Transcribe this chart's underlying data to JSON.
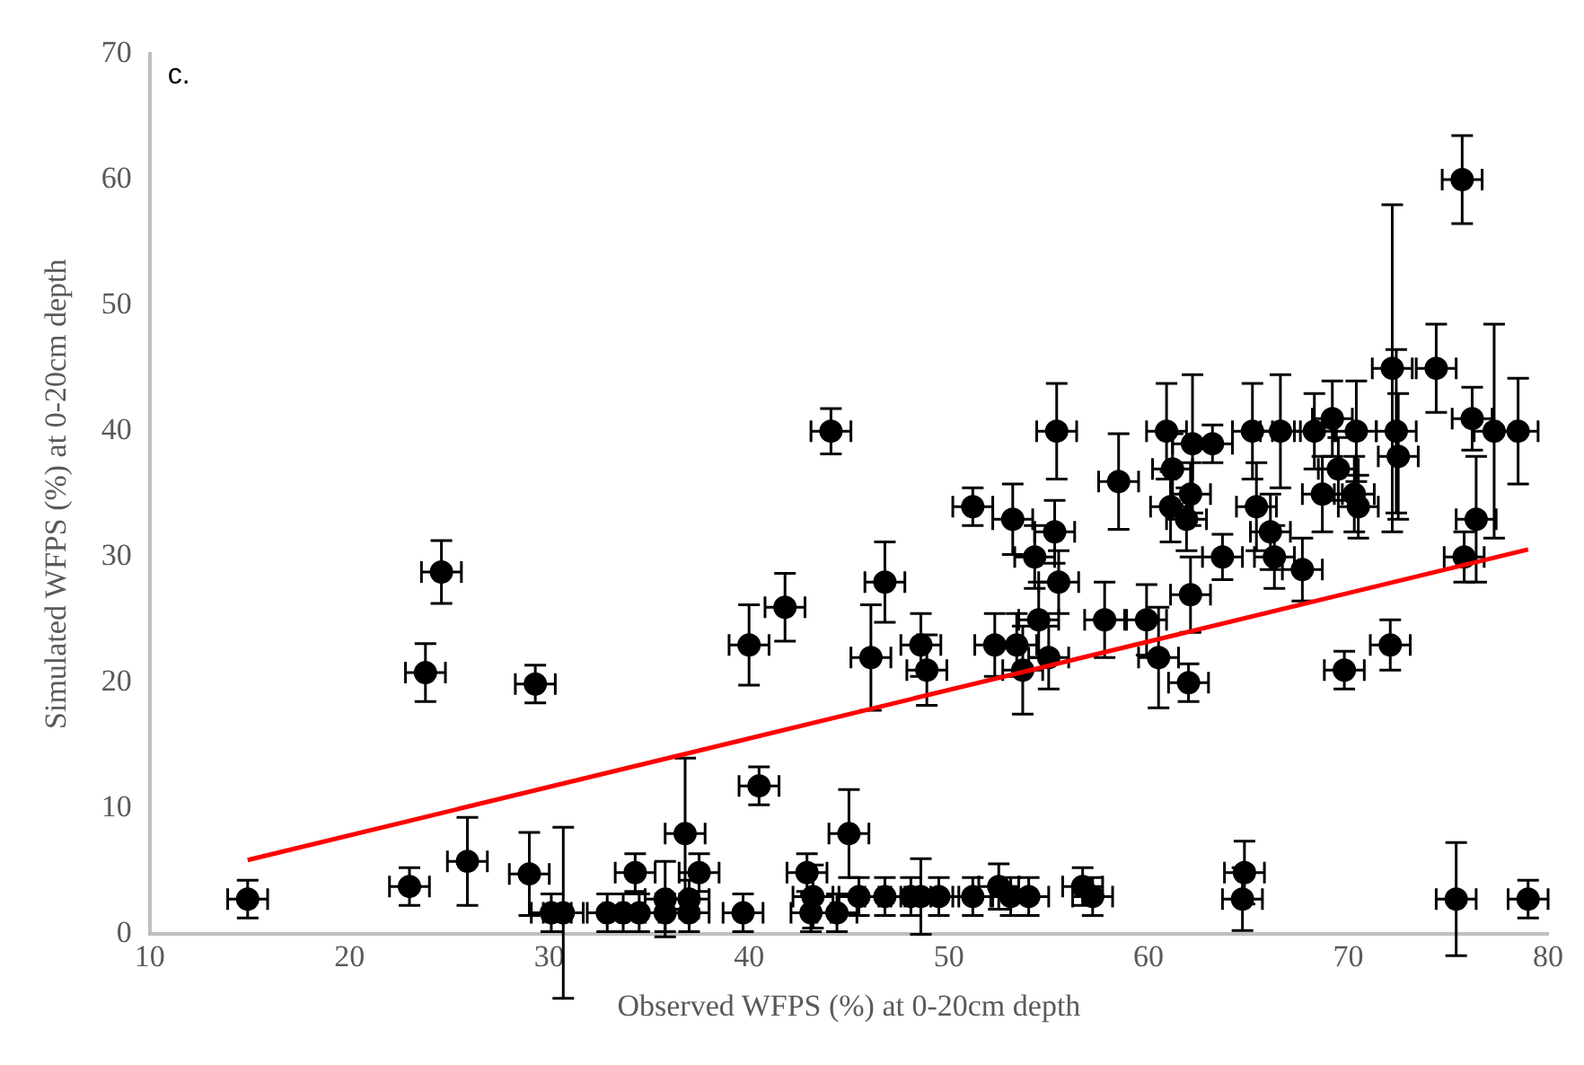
{
  "chart_data": {
    "type": "scatter",
    "xlabel": "Observed WFPS (%) at 0-20cm depth",
    "ylabel": "Simulated WFPS (%) at 0-20cm depth",
    "annotations": [
      "c."
    ],
    "xlim": [
      10,
      80
    ],
    "xticks": [
      10,
      20,
      30,
      40,
      50,
      60,
      70,
      80
    ],
    "ylim": [
      0,
      70
    ],
    "yticks": [
      0,
      10,
      20,
      30,
      40,
      50,
      60,
      70
    ],
    "grid": false,
    "series": [
      {
        "color": "#000000",
        "marker": "circle",
        "x": [
          14.9,
          23,
          23.8,
          24.6,
          25.9,
          29.3,
          29,
          30.1,
          30.7,
          32.9,
          33.7,
          34.5,
          34.3,
          35.8,
          35.8,
          36.8,
          37,
          37,
          37.5,
          39.7,
          40.5,
          40,
          41.8,
          42.9,
          43.1,
          43.2,
          44.1,
          44.4,
          45,
          45.5,
          46.1,
          46.8,
          46.8,
          48.1,
          48.6,
          48.6,
          48.9,
          49.5,
          51.2,
          51.2,
          52.3,
          52.5,
          53.1,
          53.2,
          53.4,
          53.7,
          54,
          54.3,
          54.5,
          55,
          55.3,
          55.4,
          55.5,
          56.7,
          57.2,
          57.8,
          58.5,
          59.9,
          60.5,
          60.9,
          61.2,
          61.1,
          61.9,
          62.1,
          62,
          62.1,
          62.2,
          63.2,
          63.7,
          64.7,
          64.8,
          65.2,
          65.4,
          66.1,
          66.3,
          66.6,
          67.7,
          68.3,
          68.7,
          69.2,
          69.5,
          69.8,
          70.3,
          70.4,
          70.5,
          72.1,
          72.2,
          72.4,
          72.5,
          74.4,
          75.4,
          75.7,
          75.8,
          76.2,
          76.4,
          77.3,
          78.5,
          79
        ],
        "values": [
          2.8,
          3.8,
          20.8,
          28.8,
          5.8,
          19.9,
          4.8,
          1.7,
          1.7,
          1.7,
          1.7,
          1.7,
          4.9,
          2.8,
          1.7,
          8,
          2.8,
          1.7,
          4.9,
          1.7,
          11.8,
          23,
          26,
          4.9,
          1.7,
          3,
          40,
          1.7,
          8,
          3,
          22,
          28,
          3,
          3,
          23,
          3,
          21,
          3,
          34,
          3,
          23,
          3.8,
          3,
          33,
          23,
          21,
          3,
          30,
          25,
          22,
          32,
          40,
          28,
          3.8,
          3,
          25,
          36,
          25,
          22,
          40,
          37,
          34,
          33,
          35,
          20,
          27,
          39,
          39,
          30,
          2.8,
          4.9,
          40,
          34,
          32,
          30,
          40,
          29,
          40,
          35,
          41,
          37,
          21,
          35,
          40,
          34,
          23,
          45,
          40,
          38,
          45,
          2.8,
          60,
          30,
          41,
          33,
          40,
          40,
          2.8
        ],
        "errors": [
          1.5,
          1.5,
          2.3,
          2.5,
          3.5,
          1.5,
          3.3,
          1.5,
          6.8,
          1.5,
          1.5,
          1.5,
          1.5,
          3,
          1.5,
          6,
          1.5,
          1.5,
          1.5,
          1.5,
          1.5,
          3.2,
          2.7,
          1.5,
          1.5,
          2.5,
          1.8,
          1.5,
          3.5,
          1.5,
          4.2,
          3.2,
          1.5,
          1.5,
          2.5,
          3,
          2.8,
          1.5,
          1.5,
          1.5,
          2.5,
          1.8,
          1.5,
          2.8,
          2.5,
          3.5,
          1.5,
          2.5,
          3,
          2.5,
          2.5,
          3.8,
          2.5,
          1.5,
          1.5,
          3,
          3.8,
          2.8,
          4,
          3.8,
          2.8,
          2.8,
          2.5,
          2.5,
          1.5,
          3,
          5.5,
          1.5,
          1.8,
          2.5,
          2.5,
          3.8,
          3.5,
          3,
          2.5,
          4.5,
          2.5,
          3,
          3,
          3,
          2.5,
          1.5,
          3,
          4,
          2.5,
          2,
          13,
          6.5,
          5,
          3.5,
          4.5,
          3.5,
          2,
          2.5,
          5,
          8.5,
          4.2,
          1.5
        ],
        "xerrors": [
          1,
          1,
          1,
          1,
          1,
          1,
          1,
          1,
          1,
          1,
          1,
          1,
          1,
          1,
          1,
          1,
          1,
          1,
          1,
          1,
          1,
          1,
          1,
          1,
          1,
          1,
          1,
          1,
          1,
          1,
          1,
          1,
          1,
          1,
          1,
          1,
          1,
          1,
          1,
          1,
          1,
          1,
          1,
          1,
          1,
          1,
          1,
          1,
          1,
          1,
          1,
          1,
          1,
          1,
          1,
          1,
          1,
          1,
          1,
          1,
          1,
          1,
          1,
          1,
          1,
          1,
          1,
          1,
          1,
          1,
          1,
          1,
          1,
          1,
          1,
          1,
          1,
          1,
          1,
          1,
          1,
          1,
          1,
          1,
          1,
          1,
          1,
          1,
          1,
          1,
          1,
          1,
          1,
          1,
          1,
          1,
          1,
          1
        ]
      },
      {
        "type": "line",
        "color": "#ff0000",
        "x": [
          14.9,
          79
        ],
        "values": [
          5.9,
          30.6
        ]
      }
    ]
  }
}
